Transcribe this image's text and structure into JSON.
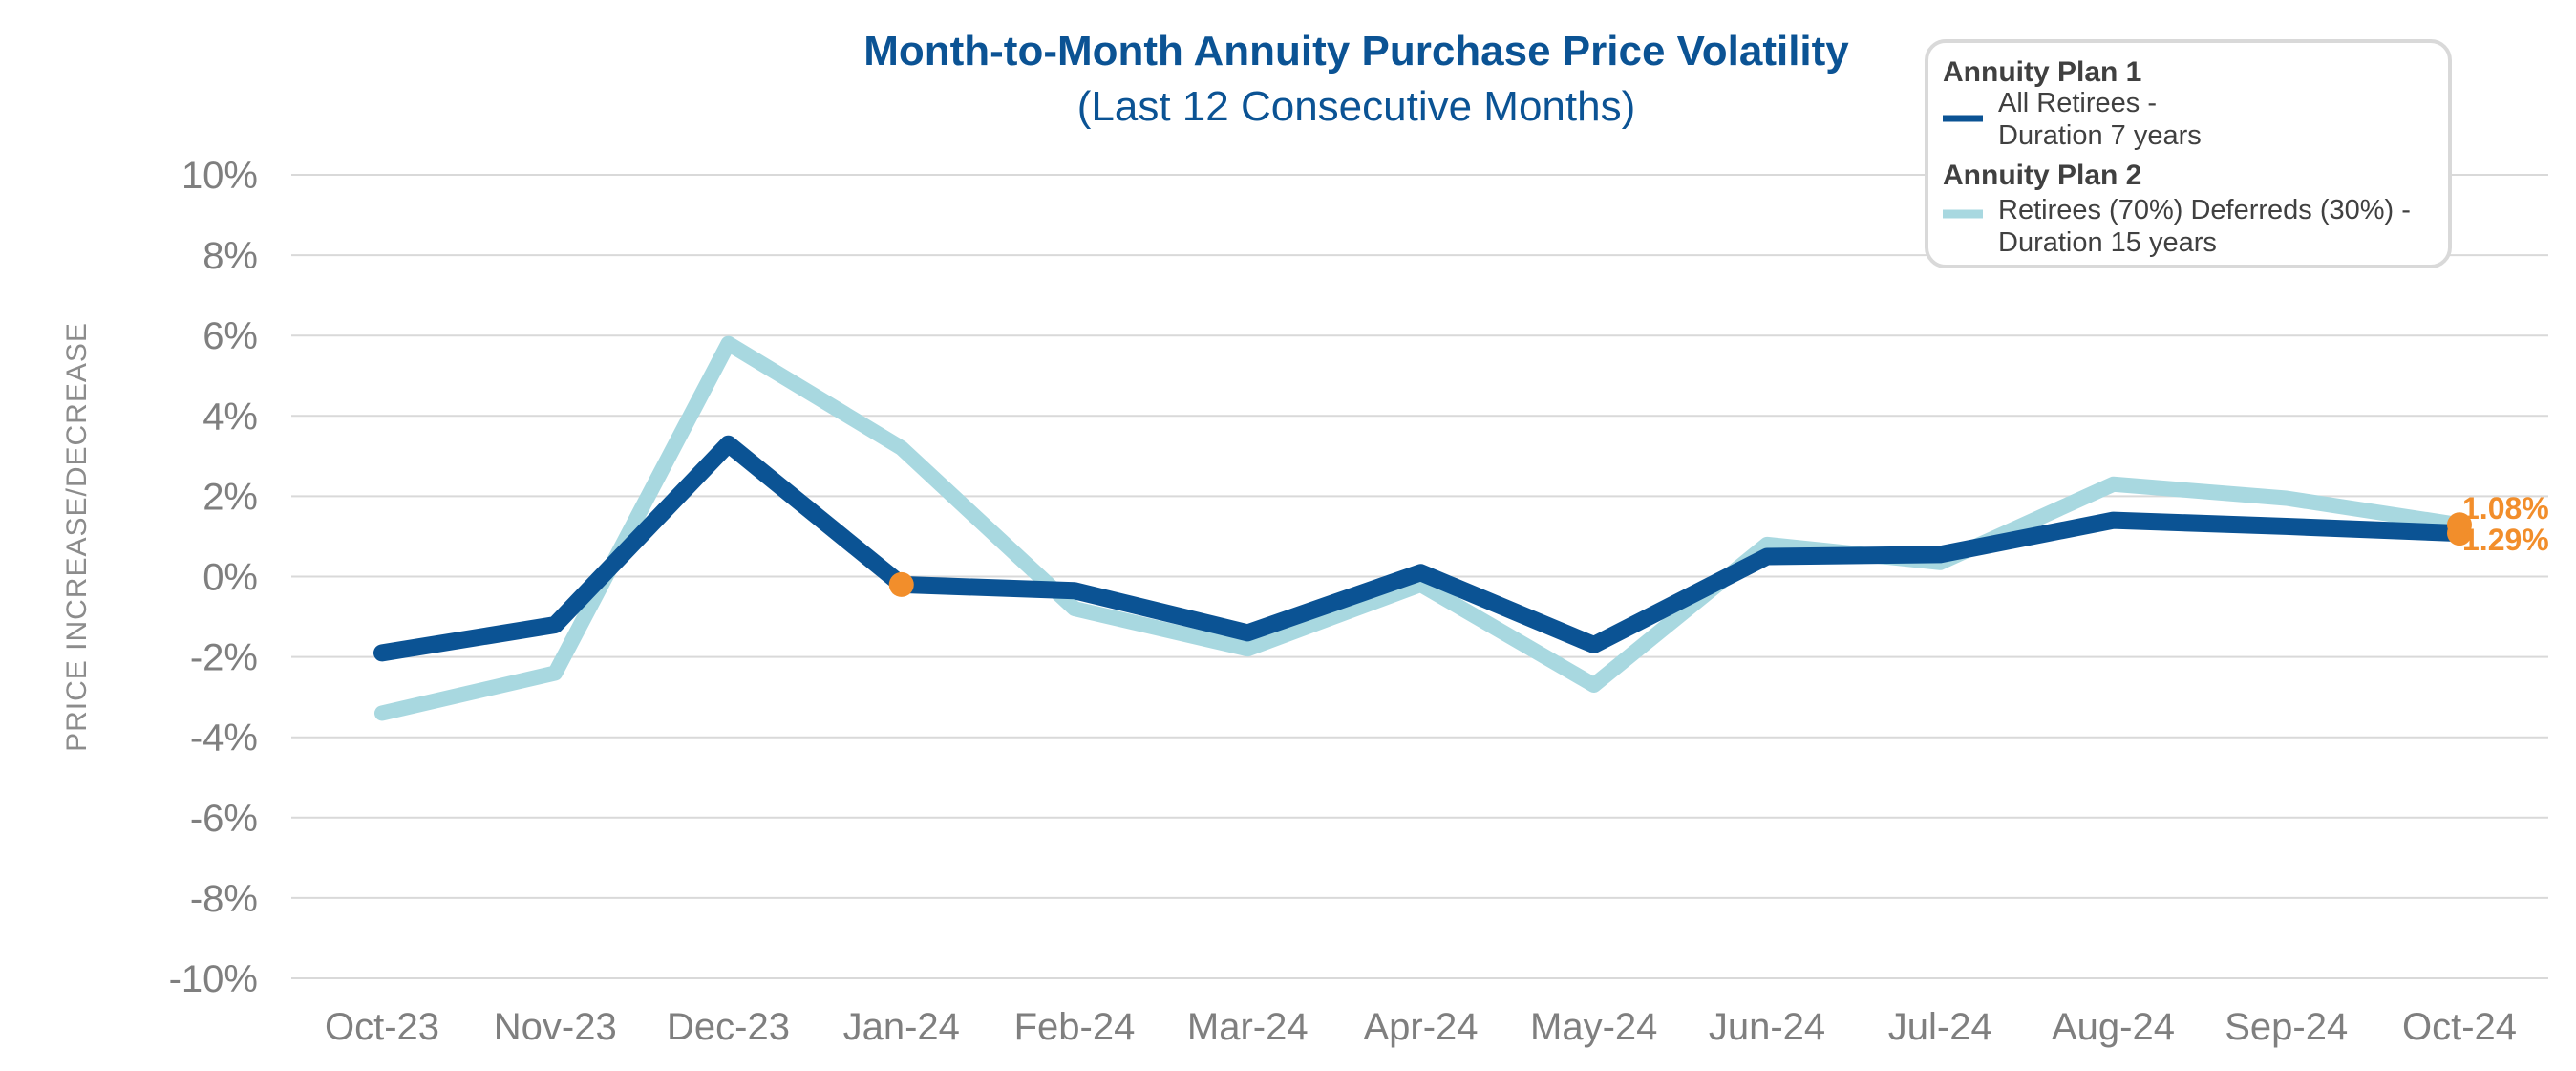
{
  "chart_data": {
    "type": "line",
    "title": "Month-to-Month Annuity Purchase Price Volatility",
    "subtitle": "(Last 12 Consecutive Months)",
    "xlabel": "",
    "ylabel": "PRICE INCREASE/DECREASE",
    "ylim": [
      -10,
      10
    ],
    "y_ticks": [
      "10%",
      "8%",
      "6%",
      "4%",
      "2%",
      "0%",
      "-2%",
      "-4%",
      "-6%",
      "-8%",
      "-10%"
    ],
    "y_tick_values": [
      10,
      8,
      6,
      4,
      2,
      0,
      -2,
      -4,
      -6,
      -8,
      -10
    ],
    "grid": true,
    "legend_position": "top-right",
    "categories": [
      "Oct-23",
      "Nov-23",
      "Dec-23",
      "Jan-24",
      "Feb-24",
      "Mar-24",
      "Apr-24",
      "May-24",
      "Jun-24",
      "Jul-24",
      "Aug-24",
      "Sep-24",
      "Oct-24"
    ],
    "series": [
      {
        "name": "Annuity Plan 1",
        "desc_line1": "All Retirees -",
        "desc_line2": "Duration 7 years",
        "color": "#0b5394",
        "values": [
          -1.9,
          -1.2,
          3.3,
          -0.2,
          -0.35,
          -1.4,
          0.1,
          -1.7,
          0.5,
          0.55,
          1.4,
          1.25,
          1.08
        ]
      },
      {
        "name": "Annuity Plan 2",
        "desc_line1": "Retirees (70%) Deferreds (30%) -",
        "desc_line2": "Duration 15 years",
        "color": "#a8d8e0",
        "values": [
          -3.4,
          -2.4,
          5.8,
          3.2,
          -0.8,
          -1.8,
          -0.2,
          -2.7,
          0.8,
          0.35,
          2.3,
          1.95,
          1.29
        ]
      }
    ],
    "markers": [
      {
        "category": "Jan-24",
        "series": "Annuity Plan 1",
        "value": -0.2,
        "color": "#f28e2b"
      },
      {
        "category": "Oct-24",
        "series": "Annuity Plan 1",
        "value": 1.08,
        "color": "#f28e2b"
      },
      {
        "category": "Oct-24",
        "series": "Annuity Plan 2",
        "value": 1.29,
        "color": "#f28e2b"
      }
    ],
    "annotations": [
      {
        "text": "1.08%",
        "color": "#f28e2b"
      },
      {
        "text": "1.29%",
        "color": "#f28e2b"
      }
    ]
  }
}
